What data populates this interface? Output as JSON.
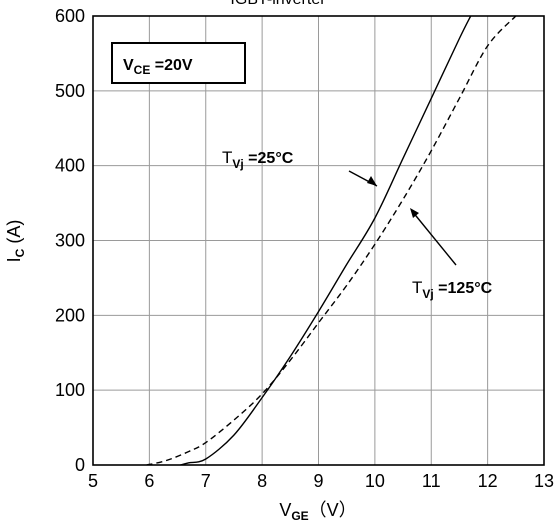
{
  "chart_data": {
    "type": "line",
    "title": "IGBT-inverter",
    "xlabel": {
      "main": "V",
      "sub": "GE",
      "unit": "（V）"
    },
    "ylabel": {
      "main": "I",
      "sub": "C",
      "unit": " (A)"
    },
    "xlim": [
      5,
      13
    ],
    "ylim": [
      0,
      600
    ],
    "xticks": [
      "5",
      "6",
      "7",
      "8",
      "9",
      "10",
      "11",
      "12",
      "13"
    ],
    "yticks": [
      "0",
      "100",
      "200",
      "300",
      "400",
      "500",
      "600"
    ],
    "grid": true,
    "condition_box": {
      "main": "V",
      "sub": "CE",
      "rest": " =20V"
    },
    "series": [
      {
        "name": "Tvj=25°C",
        "label": {
          "main": "T",
          "sub": "Vj",
          "rest": " =25°C"
        },
        "style": "solid",
        "color": "#000000",
        "x": [
          6.55,
          6.7,
          7.0,
          7.5,
          8.0,
          8.5,
          9.0,
          9.5,
          10.0,
          10.5,
          11.0,
          11.5,
          11.7
        ],
        "y": [
          0,
          3,
          8,
          40,
          90,
          145,
          205,
          268,
          330,
          410,
          490,
          570,
          600
        ]
      },
      {
        "name": "Tvj=125°C",
        "label": {
          "main": "T",
          "sub": "Vj",
          "rest": " =125°C"
        },
        "style": "dashed",
        "color": "#000000",
        "x": [
          5.95,
          6.3,
          6.7,
          7.0,
          7.5,
          8.0,
          8.5,
          9.0,
          9.5,
          10.0,
          10.5,
          11.0,
          11.5,
          12.0,
          12.5
        ],
        "y": [
          0,
          6,
          18,
          30,
          60,
          95,
          140,
          190,
          240,
          295,
          355,
          420,
          490,
          560,
          600
        ]
      }
    ]
  }
}
